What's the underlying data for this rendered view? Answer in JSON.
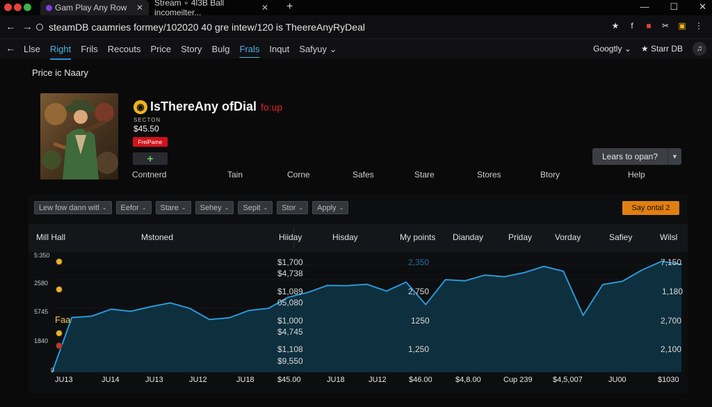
{
  "browser": {
    "tabs": [
      {
        "title": "Gam Play Any Row",
        "close": "✕"
      },
      {
        "title": "Stream ∘ 4l3B Ball incomeilter...",
        "close": "✕"
      }
    ],
    "new_tab": "+",
    "window_buttons": [
      "—",
      "☐",
      "✕"
    ],
    "url": "steamDB caamries formey/102020 40 gre intew/120 is TheereAnyRyDeal",
    "ext_icons": [
      "★",
      "f",
      "■",
      "✂",
      "▣",
      "⋮"
    ],
    "colors": {
      "accent": "#2e8fd0",
      "danger": "#d1121c",
      "orange": "#e07f12"
    }
  },
  "site_nav": {
    "items": [
      "Llse",
      "Right",
      "Frils",
      "Recouts",
      "Price",
      "Story",
      "Bulg",
      "Frals",
      "Inqut",
      "Safyuy"
    ],
    "active_index": 1,
    "underlined_index": 7,
    "right_menu": "Googtly",
    "store_link": "Starr DB"
  },
  "page": {
    "title": "Price ic Naary",
    "game_title": "IsThereAny ofDial",
    "game_title_suffix": "fo:up",
    "section_label": "SECTON",
    "price": "$45.50",
    "badge": "FreiPame",
    "add_label": "+",
    "learn_button": "Lears to opan?",
    "subnav": [
      "Contnerd",
      "Tain",
      "Corne",
      "Safes",
      "Stare",
      "Stores",
      "Btory",
      "Help"
    ]
  },
  "filters": {
    "items": [
      "Lew fow dann witl",
      "Eefor",
      "Stare",
      "Sehey",
      "Sepit",
      "Stor",
      "Apply"
    ],
    "action_button": "Say ontal 2"
  },
  "table_header": {
    "left": "Mill Hall",
    "center": "Mstoned",
    "columns": [
      "Hiiday",
      "Hisday",
      "My points",
      "Dianday",
      "Priday",
      "Vorday",
      "Safiey",
      "Wilsl"
    ]
  },
  "chart_data": {
    "type": "area",
    "y_labels_left": [
      "5:350",
      "2580",
      "5745",
      "1840"
    ],
    "left_annotation": "Faa",
    "x_labels": [
      "JU13",
      "JU14",
      "JU13",
      "JU12",
      "JU18",
      "$45.00",
      "JU18",
      "JU12",
      "$46.00",
      "$4,8.00",
      "Cup 239",
      "$4,5,007",
      "JU00",
      "$1030"
    ],
    "mid_labels": [
      {
        "text": "$1,700",
        "style": "normal"
      },
      {
        "text": "$4,738",
        "style": "normal"
      },
      {
        "text": "$1,089",
        "style": "normal"
      },
      {
        "text": "05,080",
        "style": "normal"
      },
      {
        "text": "$1,000",
        "style": "normal"
      },
      {
        "text": "$4,745",
        "style": "normal"
      },
      {
        "text": "$1,108",
        "style": "normal"
      },
      {
        "text": "$9,550",
        "style": "normal"
      },
      {
        "text": "2,350",
        "style": "blue"
      },
      {
        "text": "2,750",
        "style": "normal"
      },
      {
        "text": "1250",
        "style": "normal"
      },
      {
        "text": "1,250",
        "style": "normal"
      },
      {
        "text": "7,150",
        "style": "normal"
      },
      {
        "text": "1,180",
        "style": "normal"
      },
      {
        "text": "2,700",
        "style": "normal"
      },
      {
        "text": "2,100",
        "style": "normal"
      }
    ],
    "zero_label": "0",
    "series": [
      {
        "values": [
          0,
          2020,
          2070,
          2330,
          2250,
          2420,
          2560,
          2360,
          1950,
          2010,
          2280,
          2360,
          2770,
          2950,
          3210,
          3200,
          3250,
          3000,
          3330,
          2500,
          3420,
          3380,
          3590,
          3530,
          3680,
          3910,
          3730,
          2100,
          3240,
          3360,
          3780,
          4100,
          3980
        ]
      }
    ],
    "line_color": "#2a98d6",
    "fill_color": "#0f3547"
  }
}
